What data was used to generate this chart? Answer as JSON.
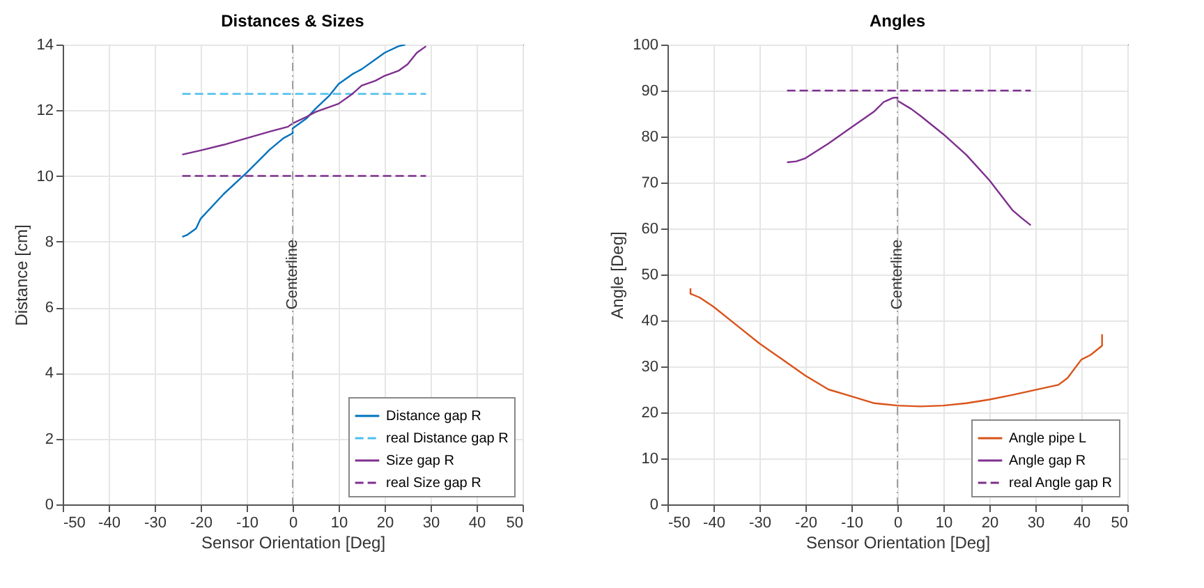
{
  "chart_data": [
    {
      "type": "line",
      "title": "Distances & Sizes",
      "xlabel": "Sensor Orientation [Deg]",
      "ylabel": "Distance [cm]",
      "xlim": [
        -50,
        50
      ],
      "xticks": [
        -50,
        -40,
        -30,
        -20,
        -10,
        0,
        10,
        20,
        30,
        40,
        50
      ],
      "ylim": [
        0,
        14
      ],
      "yticks": [
        0,
        2,
        4,
        6,
        8,
        10,
        12,
        14
      ],
      "grid": true,
      "legend": "bottom right",
      "ref_lines": [
        {
          "axis": "x",
          "value": 0,
          "label": "Centerline",
          "color": "#a0a0a0",
          "line_style": "dashdot"
        }
      ],
      "series": [
        {
          "name": "Distance gap R",
          "color": "#0072bd",
          "line_style": "solid",
          "x": [
            -24,
            -23,
            -21,
            -20,
            -15,
            -10,
            -5,
            -2,
            0,
            0,
            3,
            5,
            8,
            10,
            13,
            15,
            18,
            20,
            23,
            24.5
          ],
          "values": [
            8.15,
            8.2,
            8.4,
            8.7,
            9.45,
            10.1,
            10.8,
            11.15,
            11.3,
            11.45,
            11.75,
            12.05,
            12.45,
            12.8,
            13.1,
            13.25,
            13.55,
            13.75,
            13.95,
            14.0
          ]
        },
        {
          "name": "real Distance gap R",
          "color": "#4dbeee",
          "line_style": "dashed",
          "x": [
            -24,
            29
          ],
          "values": [
            12.5,
            12.5
          ]
        },
        {
          "name": "Size gap R",
          "color": "#7e2f8e",
          "line_style": "solid",
          "x": [
            -24,
            -20,
            -15,
            -10,
            -5,
            -1,
            0,
            3,
            5,
            10,
            13,
            15,
            18,
            20,
            23,
            25,
            27,
            29
          ],
          "values": [
            10.65,
            10.78,
            10.95,
            11.15,
            11.35,
            11.5,
            11.6,
            11.8,
            11.95,
            12.2,
            12.5,
            12.75,
            12.9,
            13.05,
            13.2,
            13.4,
            13.75,
            13.95
          ]
        },
        {
          "name": "real Size gap R",
          "color": "#7e2f8e",
          "line_style": "dashed",
          "x": [
            -24,
            29
          ],
          "values": [
            10,
            10
          ]
        }
      ]
    },
    {
      "type": "line",
      "title": "Angles",
      "xlabel": "Sensor Orientation [Deg]",
      "ylabel": "Angle [Deg]",
      "xlim": [
        -50,
        50
      ],
      "xticks": [
        -50,
        -40,
        -30,
        -20,
        -10,
        0,
        10,
        20,
        30,
        40,
        50
      ],
      "ylim": [
        0,
        100
      ],
      "yticks": [
        0,
        10,
        20,
        30,
        40,
        50,
        60,
        70,
        80,
        90,
        100
      ],
      "grid": true,
      "legend": "bottom right",
      "ref_lines": [
        {
          "axis": "x",
          "value": 0,
          "label": "Centerline",
          "color": "#a0a0a0",
          "line_style": "dashdot"
        }
      ],
      "series": [
        {
          "name": "Angle pipe L",
          "color": "#d95319",
          "line_style": "solid",
          "x": [
            -45,
            -45,
            -43,
            -40,
            -35,
            -30,
            -25,
            -20,
            -15,
            -10,
            -5,
            0,
            5,
            10,
            15,
            20,
            25,
            30,
            35,
            37,
            40,
            42,
            44.5,
            44.5
          ],
          "values": [
            47,
            45.8,
            45,
            43,
            39,
            35,
            31.5,
            28,
            25,
            23.5,
            22,
            21.5,
            21.3,
            21.5,
            22,
            22.8,
            23.8,
            24.9,
            26,
            27.5,
            31.5,
            32.5,
            34.5,
            37
          ]
        },
        {
          "name": "Angle gap R",
          "color": "#7e2f8e",
          "line_style": "solid",
          "x": [
            -24,
            -22,
            -20,
            -15,
            -10,
            -5,
            -3,
            -1,
            0,
            0,
            3,
            5,
            10,
            15,
            20,
            25,
            27,
            29
          ],
          "values": [
            74.4,
            74.6,
            75.3,
            78.5,
            82,
            85.5,
            87.5,
            88.4,
            88.5,
            87.8,
            86,
            84.5,
            80.5,
            76,
            70.5,
            64,
            62.3,
            60.7
          ]
        },
        {
          "name": "real Angle gap R",
          "color": "#7e2f8e",
          "line_style": "dashed",
          "x": [
            -24,
            29
          ],
          "values": [
            90,
            90
          ]
        }
      ]
    }
  ]
}
